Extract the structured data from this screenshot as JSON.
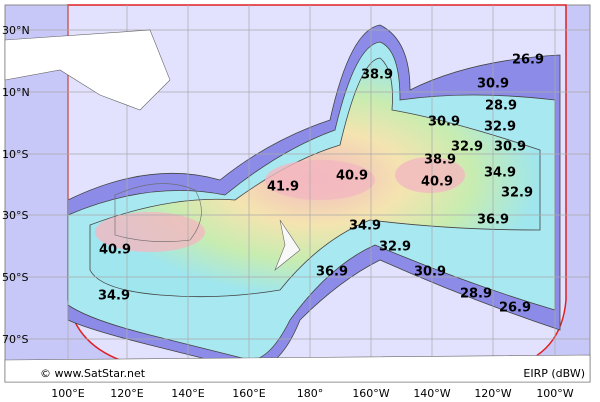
{
  "map": {
    "lat_labels": [
      "30°N",
      "10°N",
      "10°S",
      "30°S",
      "50°S",
      "70°S"
    ],
    "lon_labels": [
      "100°E",
      "120°E",
      "140°E",
      "160°E",
      "180°",
      "160°W",
      "140°W",
      "120°W",
      "100°W"
    ],
    "contour_labels": [
      "26.9",
      "38.9",
      "30.9",
      "28.9",
      "30.9",
      "32.9",
      "32.9",
      "30.9",
      "38.9",
      "40.9",
      "41.9",
      "40.9",
      "34.9",
      "32.9",
      "36.9",
      "34.9",
      "32.9",
      "40.9",
      "30.9",
      "36.9",
      "28.9",
      "34.9",
      "26.9"
    ],
    "credit": "© www.SatStar.net",
    "unit": "EIRP (dBW)"
  }
}
